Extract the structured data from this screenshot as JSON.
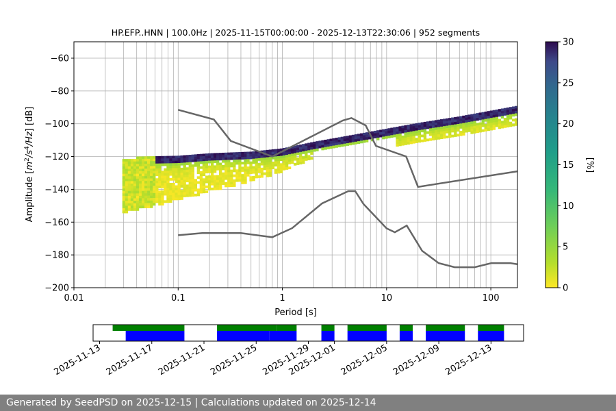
{
  "footer": {
    "text": "Generated by SeedPSD on 2025-12-15 | Calculations updated on 2025-12-14"
  },
  "chart_data": [
    {
      "type": "heatmap",
      "title": "HP.EFP..HNN | 100.0Hz | 2025-11-15T00:00:00 - 2025-12-13T22:30:06 | 952 segments",
      "xlabel": "Period [s]",
      "ylabel_parts": [
        "Amplitude [",
        "m",
        "2",
        "/",
        "s",
        "4",
        "/",
        "Hz",
        "] [dB]"
      ],
      "xscale": "log",
      "xlim": [
        0.01,
        180
      ],
      "ylim": [
        -200,
        -50
      ],
      "x_ticks": [
        {
          "v": 0.01,
          "label": "0.01"
        },
        {
          "v": 0.1,
          "label": "0.1"
        },
        {
          "v": 1,
          "label": "1"
        },
        {
          "v": 10,
          "label": "10"
        },
        {
          "v": 100,
          "label": "100"
        }
      ],
      "y_ticks": [
        {
          "v": -60,
          "label": "−60"
        },
        {
          "v": -80,
          "label": "−80"
        },
        {
          "v": -100,
          "label": "−100"
        },
        {
          "v": -120,
          "label": "−120"
        },
        {
          "v": -140,
          "label": "−140"
        },
        {
          "v": -160,
          "label": "−160"
        },
        {
          "v": -180,
          "label": "−180"
        },
        {
          "v": -200,
          "label": "−200"
        }
      ],
      "grid_periods": [
        0.02,
        0.03,
        0.04,
        0.05,
        0.06,
        0.07,
        0.08,
        0.09,
        0.1,
        0.2,
        0.3,
        0.4,
        0.5,
        0.6,
        0.7,
        0.8,
        0.9,
        1,
        2,
        3,
        4,
        5,
        6,
        7,
        8,
        9,
        10,
        20,
        30,
        40,
        50,
        60,
        70,
        80,
        90,
        100
      ],
      "grid_db": [
        -60,
        -80,
        -100,
        -120,
        -140,
        -160,
        -180
      ],
      "colorbar": {
        "label": "[%]",
        "range": [
          0,
          30
        ],
        "ticks": [
          {
            "v": 0,
            "label": "0"
          },
          {
            "v": 5,
            "label": "5"
          },
          {
            "v": 10,
            "label": "10"
          },
          {
            "v": 15,
            "label": "15"
          },
          {
            "v": 20,
            "label": "20"
          },
          {
            "v": 25,
            "label": "25"
          },
          {
            "v": 30,
            "label": "30"
          }
        ]
      },
      "nhnm": [
        [
          0.1,
          -91.5
        ],
        [
          0.22,
          -97.4
        ],
        [
          0.32,
          -110.5
        ],
        [
          0.8,
          -120
        ],
        [
          3.8,
          -98
        ],
        [
          4.6,
          -96.5
        ],
        [
          6.3,
          -101
        ],
        [
          7.9,
          -113.5
        ],
        [
          15.4,
          -120
        ],
        [
          20,
          -138.5
        ],
        [
          180,
          -129
        ]
      ],
      "nlnm": [
        [
          0.1,
          -168
        ],
        [
          0.17,
          -166.7
        ],
        [
          0.4,
          -166.7
        ],
        [
          0.8,
          -169.2
        ],
        [
          1.24,
          -163.7
        ],
        [
          2.4,
          -148.6
        ],
        [
          4.3,
          -141.1
        ],
        [
          5,
          -141.1
        ],
        [
          6,
          -149
        ],
        [
          10,
          -163.8
        ],
        [
          12,
          -166.2
        ],
        [
          15.6,
          -162.1
        ],
        [
          21.9,
          -177.5
        ],
        [
          31.6,
          -185
        ],
        [
          45,
          -187.5
        ],
        [
          70,
          -187.5
        ],
        [
          101,
          -185
        ],
        [
          154,
          -185
        ],
        [
          180,
          -185.7
        ]
      ],
      "dominant_line": [
        [
          0.04,
          -121.5
        ],
        [
          0.1,
          -121
        ],
        [
          0.2,
          -119.5
        ],
        [
          0.5,
          -118.5
        ],
        [
          1,
          -116.5
        ],
        [
          2,
          -112.5
        ],
        [
          5,
          -108
        ],
        [
          10,
          -104.5
        ],
        [
          20,
          -101
        ],
        [
          50,
          -97
        ],
        [
          100,
          -93.5
        ],
        [
          180,
          -90.5
        ]
      ]
    },
    {
      "type": "timeline",
      "x_ticks": [
        {
          "day": 0,
          "label": "2025-11-13"
        },
        {
          "day": 4,
          "label": "2025-11-17"
        },
        {
          "day": 8,
          "label": "2025-11-21"
        },
        {
          "day": 12,
          "label": "2025-11-25"
        },
        {
          "day": 16,
          "label": "2025-11-29"
        },
        {
          "day": 18,
          "label": "2025-12-01"
        },
        {
          "day": 22,
          "label": "2025-12-05"
        },
        {
          "day": 26,
          "label": "2025-12-09"
        },
        {
          "day": 30,
          "label": "2025-12-13"
        }
      ],
      "xlim_days": [
        -0.5,
        32.5
      ],
      "available_data": [
        [
          1,
          6.5
        ],
        [
          9,
          13.6
        ],
        [
          13.6,
          15.1
        ],
        [
          17,
          18
        ],
        [
          19,
          22
        ],
        [
          23,
          24
        ],
        [
          25,
          28
        ],
        [
          29,
          31
        ]
      ],
      "psd_segments": [
        [
          2,
          6.5
        ],
        [
          9,
          13
        ],
        [
          13,
          15.1
        ],
        [
          17,
          18
        ],
        [
          19,
          22
        ],
        [
          23,
          24
        ],
        [
          25,
          28
        ],
        [
          29,
          31
        ]
      ],
      "colors": {
        "available": "#008000",
        "psd": "#0000ff"
      }
    }
  ]
}
